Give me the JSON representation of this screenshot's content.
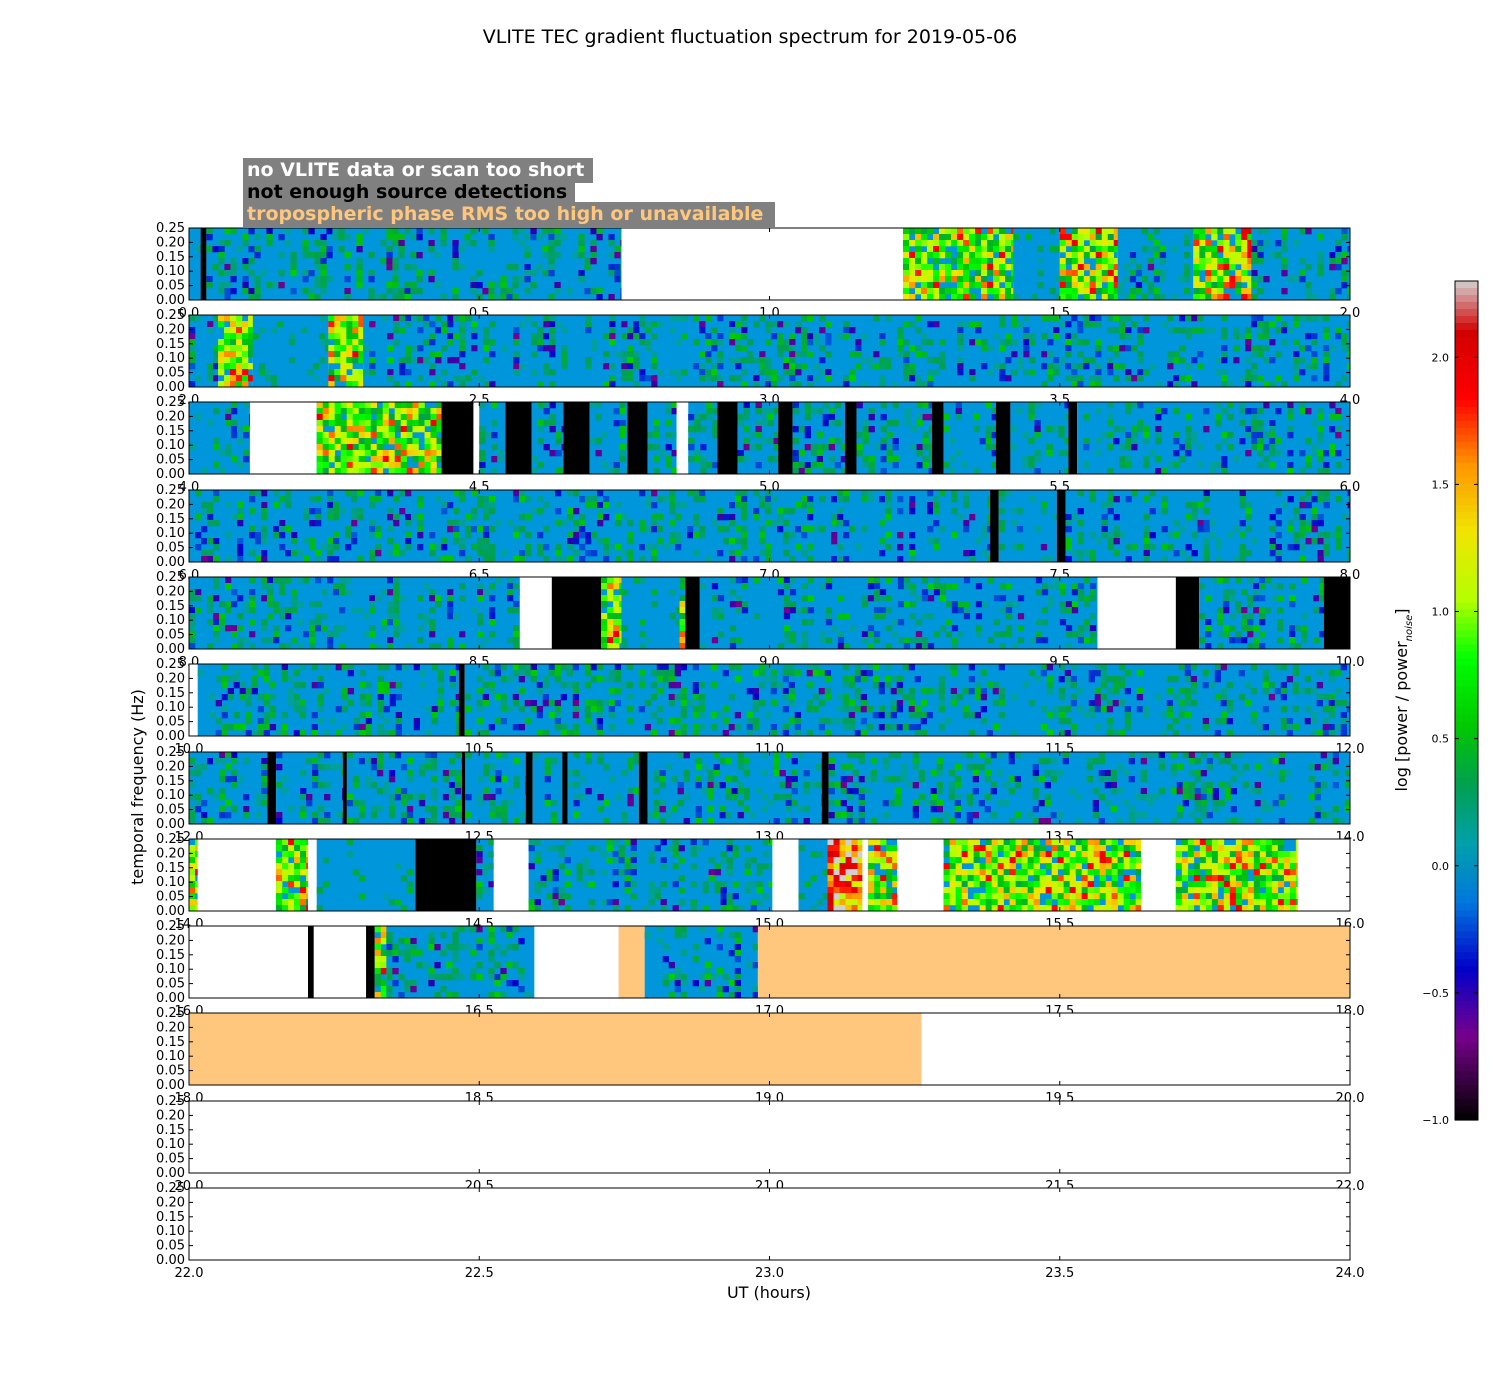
{
  "chart_data": {
    "type": "heatmap",
    "title": "VLITE TEC gradient fluctuation spectrum for 2019-05-06",
    "xlabel": "UT (hours)",
    "ylabel": "temporal frequency (Hz)",
    "colorbar": {
      "label": "log [power / power",
      "label_sub": "noise",
      "label_close": "]",
      "vmin": -1.0,
      "vmax": 2.3,
      "ticks": [
        -1.0,
        -0.5,
        0.0,
        0.5,
        1.0,
        1.5,
        2.0
      ],
      "tick_labels": [
        "−1.0",
        "−0.5",
        "0.0",
        "0.5",
        "1.0",
        "1.5",
        "2.0"
      ],
      "colormap": "nipy_spectral"
    },
    "legend": [
      {
        "text": "no VLITE data or scan too short",
        "color": "#ffffff",
        "meaning": "white"
      },
      {
        "text": "not enough source detections",
        "color": "#000000",
        "meaning": "black"
      },
      {
        "text": "tropospheric phase RMS too high or unavailable",
        "color": "#ffc67d",
        "meaning": "orange"
      }
    ],
    "legend_box_color": "#808080",
    "y_ticks": [
      "0.00",
      "0.05",
      "0.10",
      "0.15",
      "0.20",
      "0.25"
    ],
    "ylim": [
      0.0,
      0.25
    ],
    "panels": [
      {
        "xlim": [
          0,
          2
        ],
        "x_ticks": [
          "0.0",
          "0.5",
          "1.0",
          "1.5",
          "2.0"
        ],
        "segments": [
          [
            0.0,
            0.02,
            "data"
          ],
          [
            0.02,
            0.03,
            "black"
          ],
          [
            0.03,
            0.745,
            "data"
          ],
          [
            0.745,
            1.23,
            "white"
          ],
          [
            1.23,
            1.42,
            "active"
          ],
          [
            1.42,
            1.5,
            "quiet"
          ],
          [
            1.5,
            1.6,
            "active"
          ],
          [
            1.6,
            1.73,
            "data"
          ],
          [
            1.73,
            1.83,
            "active"
          ],
          [
            1.83,
            2.0,
            "data"
          ]
        ]
      },
      {
        "xlim": [
          2,
          4
        ],
        "x_ticks": [
          "2.0",
          "2.5",
          "3.0",
          "3.5",
          "4.0"
        ],
        "segments": [
          [
            2.0,
            2.05,
            "data"
          ],
          [
            2.05,
            2.11,
            "active"
          ],
          [
            2.11,
            2.24,
            "quiet"
          ],
          [
            2.24,
            2.3,
            "active"
          ],
          [
            2.3,
            4.0,
            "data"
          ]
        ]
      },
      {
        "xlim": [
          4,
          6
        ],
        "x_ticks": [
          "4.0",
          "4.5",
          "5.0",
          "5.5",
          "6.0"
        ],
        "segments": [
          [
            4.0,
            4.105,
            "data"
          ],
          [
            4.105,
            4.22,
            "white"
          ],
          [
            4.22,
            4.385,
            "active"
          ],
          [
            4.385,
            4.435,
            "active"
          ],
          [
            4.435,
            4.49,
            "black"
          ],
          [
            4.49,
            4.5,
            "white"
          ],
          [
            4.5,
            4.545,
            "data"
          ],
          [
            4.545,
            4.59,
            "black"
          ],
          [
            4.59,
            4.645,
            "data"
          ],
          [
            4.645,
            4.69,
            "black"
          ],
          [
            4.69,
            4.755,
            "data"
          ],
          [
            4.755,
            4.79,
            "black"
          ],
          [
            4.79,
            4.84,
            "data"
          ],
          [
            4.84,
            4.845,
            "white"
          ],
          [
            4.845,
            4.86,
            "white"
          ],
          [
            4.86,
            4.91,
            "data"
          ],
          [
            4.91,
            4.945,
            "black"
          ],
          [
            4.945,
            5.015,
            "data"
          ],
          [
            5.015,
            5.04,
            "black"
          ],
          [
            5.04,
            5.13,
            "data"
          ],
          [
            5.13,
            5.15,
            "black"
          ],
          [
            5.15,
            5.28,
            "data"
          ],
          [
            5.28,
            5.3,
            "black"
          ],
          [
            5.3,
            5.39,
            "data"
          ],
          [
            5.39,
            5.415,
            "black"
          ],
          [
            5.415,
            5.515,
            "data"
          ],
          [
            5.515,
            5.53,
            "black"
          ],
          [
            5.53,
            6.0,
            "data"
          ]
        ]
      },
      {
        "xlim": [
          6,
          8
        ],
        "x_ticks": [
          "6.0",
          "6.5",
          "7.0",
          "7.5",
          "8.0"
        ],
        "segments": [
          [
            6.0,
            7.38,
            "data"
          ],
          [
            7.38,
            7.395,
            "black"
          ],
          [
            7.395,
            7.495,
            "data"
          ],
          [
            7.495,
            7.51,
            "black"
          ],
          [
            7.51,
            8.0,
            "data"
          ]
        ]
      },
      {
        "xlim": [
          8,
          10
        ],
        "x_ticks": [
          "8.0",
          "8.5",
          "9.0",
          "9.5",
          "10.0"
        ],
        "segments": [
          [
            8.0,
            8.57,
            "data"
          ],
          [
            8.57,
            8.625,
            "white"
          ],
          [
            8.625,
            8.71,
            "black"
          ],
          [
            8.71,
            8.745,
            "active"
          ],
          [
            8.745,
            8.845,
            "quiet"
          ],
          [
            8.845,
            8.855,
            "active"
          ],
          [
            8.855,
            8.88,
            "black"
          ],
          [
            8.88,
            9.565,
            "data"
          ],
          [
            9.565,
            9.7,
            "white"
          ],
          [
            9.7,
            9.74,
            "black"
          ],
          [
            9.74,
            9.955,
            "data"
          ],
          [
            9.955,
            10.0,
            "black"
          ]
        ]
      },
      {
        "xlim": [
          10,
          12
        ],
        "x_ticks": [
          "10.0",
          "10.5",
          "11.0",
          "11.5",
          "12.0"
        ],
        "segments": [
          [
            10.0,
            10.015,
            "white"
          ],
          [
            10.015,
            10.465,
            "data"
          ],
          [
            10.465,
            10.475,
            "black"
          ],
          [
            10.475,
            12.0,
            "data"
          ]
        ]
      },
      {
        "xlim": [
          12,
          14
        ],
        "x_ticks": [
          "12.0",
          "12.5",
          "13.0",
          "13.5",
          "14.0"
        ],
        "segments": [
          [
            12.0,
            12.135,
            "data"
          ],
          [
            12.135,
            12.15,
            "black"
          ],
          [
            12.15,
            12.265,
            "data"
          ],
          [
            12.265,
            12.272,
            "black"
          ],
          [
            12.272,
            12.47,
            "data"
          ],
          [
            12.47,
            12.476,
            "black"
          ],
          [
            12.476,
            12.58,
            "data"
          ],
          [
            12.58,
            12.592,
            "black"
          ],
          [
            12.592,
            12.643,
            "data"
          ],
          [
            12.643,
            12.652,
            "black"
          ],
          [
            12.652,
            12.775,
            "data"
          ],
          [
            12.775,
            12.79,
            "black"
          ],
          [
            12.79,
            13.09,
            "data"
          ],
          [
            13.09,
            13.102,
            "black"
          ],
          [
            13.102,
            14.0,
            "data"
          ]
        ]
      },
      {
        "xlim": [
          14,
          16
        ],
        "x_ticks": [
          "14.0",
          "14.5",
          "15.0",
          "15.5",
          "16.0"
        ],
        "segments": [
          [
            14.0,
            14.015,
            "active"
          ],
          [
            14.015,
            14.15,
            "white"
          ],
          [
            14.15,
            14.205,
            "active"
          ],
          [
            14.205,
            14.22,
            "white"
          ],
          [
            14.22,
            14.39,
            "quiet"
          ],
          [
            14.39,
            14.495,
            "black"
          ],
          [
            14.495,
            14.525,
            "data"
          ],
          [
            14.525,
            14.585,
            "white"
          ],
          [
            14.585,
            15.005,
            "data"
          ],
          [
            15.005,
            15.05,
            "white"
          ],
          [
            15.05,
            15.1,
            "quiet"
          ],
          [
            15.1,
            15.16,
            "hot"
          ],
          [
            15.16,
            15.17,
            "white"
          ],
          [
            15.17,
            15.22,
            "active"
          ],
          [
            15.22,
            15.3,
            "white"
          ],
          [
            15.3,
            15.64,
            "active"
          ],
          [
            15.64,
            15.7,
            "white"
          ],
          [
            15.7,
            15.91,
            "active"
          ],
          [
            15.91,
            16.0,
            "white"
          ]
        ]
      },
      {
        "xlim": [
          16,
          18
        ],
        "x_ticks": [
          "16.0",
          "16.5",
          "17.0",
          "17.5",
          "18.0"
        ],
        "segments": [
          [
            16.0,
            16.205,
            "white"
          ],
          [
            16.205,
            16.215,
            "black"
          ],
          [
            16.215,
            16.305,
            "white"
          ],
          [
            16.305,
            16.32,
            "black"
          ],
          [
            16.32,
            16.34,
            "active"
          ],
          [
            16.34,
            16.595,
            "data"
          ],
          [
            16.595,
            16.74,
            "white"
          ],
          [
            16.74,
            16.785,
            "orange"
          ],
          [
            16.785,
            16.98,
            "data"
          ],
          [
            16.98,
            18.0,
            "orange"
          ]
        ]
      },
      {
        "xlim": [
          18,
          20
        ],
        "x_ticks": [
          "18.0",
          "18.5",
          "19.0",
          "19.5",
          "20.0"
        ],
        "segments": [
          [
            18.0,
            19.262,
            "orange"
          ],
          [
            19.262,
            20.0,
            "white"
          ]
        ]
      },
      {
        "xlim": [
          20,
          22
        ],
        "x_ticks": [
          "20.0",
          "20.5",
          "21.0",
          "21.5",
          "22.0"
        ],
        "segments": [
          [
            20.0,
            22.0,
            "white"
          ]
        ]
      },
      {
        "xlim": [
          22,
          24
        ],
        "x_ticks": [
          "22.0",
          "22.5",
          "23.0",
          "23.5",
          "24.0"
        ],
        "segments": [
          [
            22.0,
            24.0,
            "white"
          ]
        ]
      }
    ]
  }
}
